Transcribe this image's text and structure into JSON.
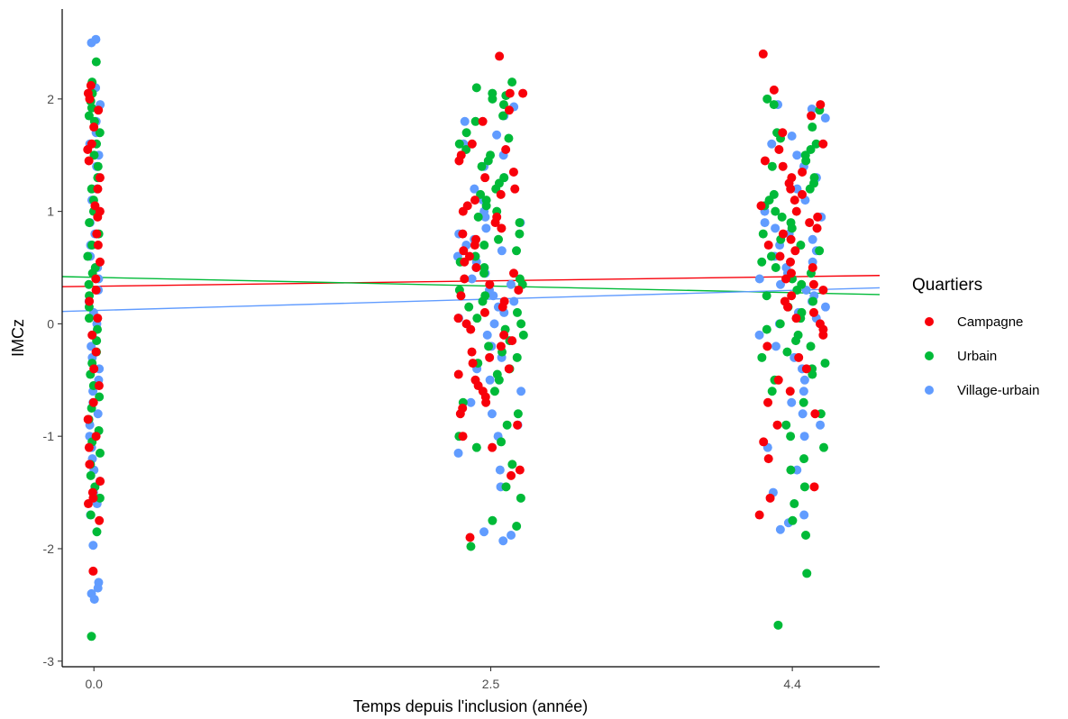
{
  "chart_data": {
    "type": "scatter",
    "title": "",
    "xlabel": "Temps depuis l'inclusion (année)",
    "ylabel": "IMCz",
    "x_ticks": [
      0.0,
      2.5,
      4.4
    ],
    "x_tick_labels": [
      "0.0",
      "2.5",
      "4.4"
    ],
    "y_ticks": [
      -3,
      -2,
      -1,
      0,
      1,
      2
    ],
    "y_tick_labels": [
      "-3",
      "-2",
      "-1",
      "0",
      "1",
      "2"
    ],
    "xlim": [
      -0.2,
      4.95
    ],
    "ylim": [
      -3.05,
      2.8
    ],
    "grid": false,
    "jitter": "points jittered horizontally within each time group",
    "legend": {
      "title": "Quartiers",
      "position": "right",
      "entries": [
        "Campagne",
        "Urbain",
        "Village-urbain"
      ]
    },
    "series": [
      {
        "name": "Campagne",
        "color": "#F8000A",
        "trend": {
          "x": [
            -0.2,
            4.95
          ],
          "y": [
            0.33,
            0.43
          ]
        },
        "groups": [
          {
            "x": 0.0,
            "y": [
              2.12,
              2.05,
              2.0,
              1.9,
              1.75,
              1.6,
              1.55,
              1.45,
              1.3,
              1.2,
              1.05,
              1.0,
              0.95,
              0.8,
              0.7,
              0.55,
              0.4,
              0.3,
              0.2,
              0.05,
              -0.1,
              -0.25,
              -0.4,
              -0.55,
              -0.7,
              -0.85,
              -1.0,
              -1.1,
              -1.25,
              -1.4,
              -1.5,
              -1.55,
              -1.6,
              -1.75,
              -2.2
            ]
          },
          {
            "x": 2.5,
            "y": [
              2.38,
              2.05,
              2.05,
              1.9,
              1.8,
              1.6,
              1.55,
              1.5,
              1.45,
              1.35,
              1.3,
              1.2,
              1.15,
              1.1,
              1.05,
              1.0,
              0.95,
              0.9,
              0.85,
              0.8,
              0.75,
              0.7,
              0.65,
              0.6,
              0.55,
              0.5,
              0.45,
              0.4,
              0.35,
              0.3,
              0.25,
              0.2,
              0.15,
              0.1,
              0.05,
              0.0,
              -0.05,
              -0.1,
              -0.15,
              -0.2,
              -0.25,
              -0.3,
              -0.35,
              -0.4,
              -0.45,
              -0.5,
              -0.55,
              -0.6,
              -0.65,
              -0.7,
              -0.75,
              -0.8,
              -0.9,
              -1.0,
              -1.1,
              -1.3,
              -1.35,
              -1.9
            ]
          },
          {
            "x": 4.4,
            "y": [
              2.4,
              2.08,
              1.95,
              1.85,
              1.7,
              1.6,
              1.55,
              1.45,
              1.4,
              1.35,
              1.3,
              1.25,
              1.2,
              1.15,
              1.1,
              1.05,
              1.0,
              0.95,
              0.9,
              0.85,
              0.8,
              0.75,
              0.7,
              0.65,
              0.6,
              0.55,
              0.5,
              0.45,
              0.4,
              0.35,
              0.3,
              0.25,
              0.2,
              0.15,
              0.1,
              0.05,
              0.0,
              -0.05,
              -0.1,
              -0.2,
              -0.3,
              -0.4,
              -0.5,
              -0.6,
              -0.7,
              -0.8,
              -0.9,
              -1.05,
              -1.2,
              -1.45,
              -1.55,
              -1.7
            ]
          }
        ]
      },
      {
        "name": "Urbain",
        "color": "#00BA38",
        "trend": {
          "x": [
            -0.2,
            4.95
          ],
          "y": [
            0.42,
            0.26
          ]
        },
        "groups": [
          {
            "x": 0.0,
            "y": [
              2.33,
              2.15,
              2.05,
              1.98,
              1.92,
              1.85,
              1.8,
              1.7,
              1.6,
              1.5,
              1.4,
              1.3,
              1.2,
              1.1,
              1.0,
              0.9,
              0.8,
              0.7,
              0.6,
              0.5,
              0.45,
              0.35,
              0.25,
              0.15,
              0.05,
              -0.05,
              -0.15,
              -0.25,
              -0.35,
              -0.45,
              -0.55,
              -0.65,
              -0.75,
              -0.85,
              -0.95,
              -1.05,
              -1.15,
              -1.25,
              -1.35,
              -1.45,
              -1.55,
              -1.7,
              -1.85,
              -2.78
            ]
          },
          {
            "x": 2.5,
            "y": [
              2.15,
              2.1,
              2.05,
              2.03,
              2.0,
              1.95,
              1.85,
              1.8,
              1.7,
              1.65,
              1.6,
              1.55,
              1.5,
              1.45,
              1.4,
              1.3,
              1.25,
              1.2,
              1.15,
              1.1,
              1.05,
              1.0,
              0.95,
              0.9,
              0.8,
              0.75,
              0.7,
              0.65,
              0.6,
              0.55,
              0.5,
              0.45,
              0.4,
              0.35,
              0.3,
              0.25,
              0.2,
              0.15,
              0.1,
              0.05,
              0.0,
              -0.05,
              -0.1,
              -0.15,
              -0.2,
              -0.25,
              -0.3,
              -0.35,
              -0.4,
              -0.45,
              -0.5,
              -0.6,
              -0.7,
              -0.8,
              -0.9,
              -1.0,
              -1.05,
              -1.1,
              -1.25,
              -1.45,
              -1.55,
              -1.75,
              -1.8,
              -1.98
            ]
          },
          {
            "x": 4.4,
            "y": [
              2.0,
              1.95,
              1.9,
              1.75,
              1.7,
              1.65,
              1.6,
              1.55,
              1.5,
              1.45,
              1.4,
              1.3,
              1.25,
              1.2,
              1.15,
              1.1,
              1.05,
              1.0,
              0.95,
              0.9,
              0.85,
              0.8,
              0.75,
              0.7,
              0.65,
              0.6,
              0.55,
              0.5,
              0.45,
              0.4,
              0.35,
              0.3,
              0.25,
              0.2,
              0.15,
              0.1,
              0.05,
              0.0,
              -0.05,
              -0.1,
              -0.15,
              -0.2,
              -0.25,
              -0.3,
              -0.35,
              -0.4,
              -0.45,
              -0.5,
              -0.6,
              -0.7,
              -0.8,
              -0.9,
              -1.0,
              -1.1,
              -1.2,
              -1.3,
              -1.45,
              -1.6,
              -1.75,
              -1.88,
              -2.22,
              -2.68
            ]
          }
        ]
      },
      {
        "name": "Village-urbain",
        "color": "#619CFF",
        "trend": {
          "x": [
            -0.2,
            4.95
          ],
          "y": [
            0.11,
            0.32
          ]
        },
        "groups": [
          {
            "x": 0.0,
            "y": [
              2.53,
              2.5,
              2.1,
              1.95,
              1.8,
              1.7,
              1.6,
              1.5,
              1.4,
              1.3,
              1.2,
              1.1,
              1.0,
              0.9,
              0.8,
              0.7,
              0.6,
              0.5,
              0.4,
              0.3,
              0.2,
              0.1,
              0.0,
              -0.1,
              -0.2,
              -0.3,
              -0.4,
              -0.5,
              -0.6,
              -0.7,
              -0.8,
              -0.9,
              -1.0,
              -1.1,
              -1.2,
              -1.3,
              -1.4,
              -1.5,
              -1.6,
              -1.7,
              -1.97,
              -2.3,
              -2.35,
              -2.4,
              -2.45
            ]
          },
          {
            "x": 2.5,
            "y": [
              1.93,
              1.85,
              1.8,
              1.68,
              1.6,
              1.5,
              1.4,
              1.3,
              1.2,
              1.1,
              1.0,
              0.95,
              0.9,
              0.85,
              0.8,
              0.75,
              0.7,
              0.65,
              0.6,
              0.55,
              0.5,
              0.45,
              0.4,
              0.35,
              0.3,
              0.25,
              0.2,
              0.15,
              0.1,
              0.05,
              0.0,
              -0.1,
              -0.2,
              -0.3,
              -0.4,
              -0.5,
              -0.6,
              -0.7,
              -0.8,
              -0.9,
              -1.0,
              -1.15,
              -1.3,
              -1.45,
              -1.85,
              -1.88,
              -1.93
            ]
          },
          {
            "x": 4.4,
            "y": [
              1.95,
              1.91,
              1.83,
              1.67,
              1.6,
              1.5,
              1.4,
              1.3,
              1.2,
              1.1,
              1.0,
              0.95,
              0.9,
              0.85,
              0.8,
              0.75,
              0.7,
              0.65,
              0.6,
              0.55,
              0.5,
              0.45,
              0.4,
              0.35,
              0.3,
              0.25,
              0.2,
              0.15,
              0.1,
              0.05,
              0.0,
              -0.1,
              -0.2,
              -0.3,
              -0.4,
              -0.5,
              -0.6,
              -0.7,
              -0.8,
              -0.9,
              -1.0,
              -1.1,
              -1.3,
              -1.5,
              -1.7,
              -1.77,
              -1.83
            ]
          }
        ]
      }
    ]
  }
}
